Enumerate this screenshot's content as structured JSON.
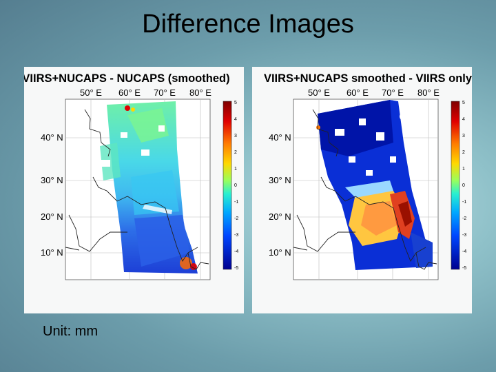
{
  "slide": {
    "title": "Difference Images",
    "unit_note": "Unit: mm"
  },
  "panels": [
    {
      "title": "VIIRS+NUCAPS - NUCAPS (smoothed)",
      "lon_labels": [
        "50° E",
        "60° E",
        "70° E",
        "80° E"
      ],
      "lat_labels": [
        "40° N",
        "30° N",
        "20° N",
        "10° N"
      ],
      "colorbar_ticks": [
        "5",
        "4",
        "3",
        "2",
        "1",
        "0",
        "-1",
        "-2",
        "-3",
        "-4",
        "-5"
      ]
    },
    {
      "title": "VIIRS+NUCAPS smoothed - VIIRS only",
      "lon_labels": [
        "50° E",
        "60° E",
        "70° E",
        "80° E"
      ],
      "lat_labels": [
        "40° N",
        "30° N",
        "20° N",
        "10° N"
      ],
      "colorbar_ticks": [
        "5",
        "4",
        "3",
        "2",
        "1",
        "0",
        "-1",
        "-2",
        "-3",
        "-4",
        "-5"
      ]
    }
  ],
  "colors": {
    "colorbar": [
      "#7f0000",
      "#e00000",
      "#ff7a00",
      "#ffd800",
      "#9bff5a",
      "#2af0d0",
      "#00a8ff",
      "#0046ff",
      "#00008f"
    ]
  }
}
